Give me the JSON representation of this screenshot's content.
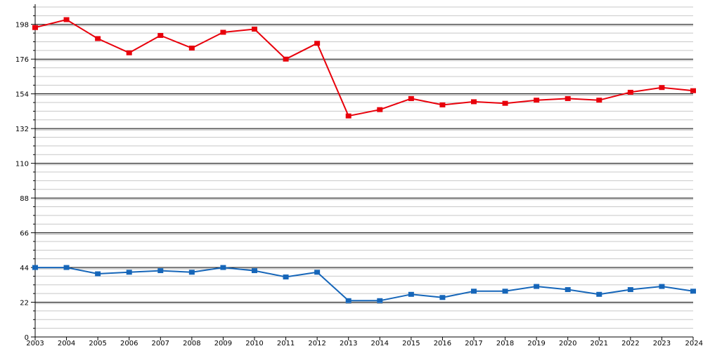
{
  "chart_data": {
    "type": "line",
    "title": "",
    "xlabel": "",
    "ylabel": "",
    "ylim": [
      0,
      209
    ],
    "y_ticks": [
      0,
      22,
      44,
      66,
      88,
      110,
      132,
      154,
      176,
      198
    ],
    "grid": true,
    "x": [
      "2003",
      "2004",
      "2005",
      "2006",
      "2007",
      "2008",
      "2009",
      "2010",
      "2011",
      "2012",
      "2013",
      "2014",
      "2015",
      "2016",
      "2017",
      "2018",
      "2019",
      "2020",
      "2021",
      "2022",
      "2023",
      "2024"
    ],
    "series": [
      {
        "color": "#e8000b",
        "values": [
          196,
          201,
          189,
          180,
          191,
          183,
          193,
          195,
          176,
          186,
          140,
          144,
          151,
          147,
          149,
          148,
          150,
          151,
          150,
          155,
          158,
          156
        ]
      },
      {
        "color": "#1666b9",
        "values": [
          44,
          44,
          40,
          41,
          42,
          41,
          44,
          42,
          38,
          41,
          23,
          23,
          27,
          25,
          29,
          29,
          32,
          30,
          27,
          30,
          32,
          29
        ]
      }
    ]
  }
}
